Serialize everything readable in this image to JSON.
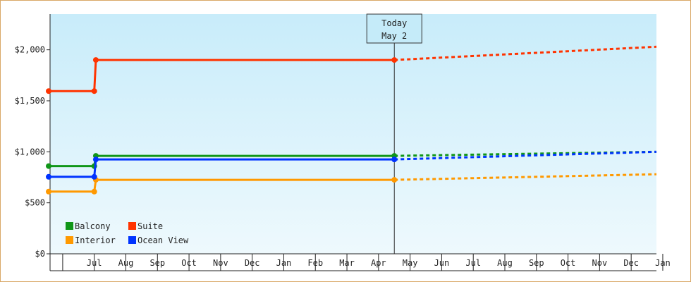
{
  "chart_data": {
    "type": "line",
    "step": true,
    "x_labels": [
      "",
      "Jul",
      "Aug",
      "Sep",
      "Oct",
      "Nov",
      "Dec",
      "Jan",
      "Feb",
      "Mar",
      "Apr",
      "May",
      "Jun",
      "Jul",
      "Aug",
      "Sep",
      "Oct",
      "Nov",
      "Dec",
      "Jan"
    ],
    "ylim": [
      0,
      2350
    ],
    "yticks": [
      0,
      500,
      1000,
      1500,
      2000
    ],
    "ytick_labels": [
      "$0",
      "$500",
      "$1,000",
      "$1,500",
      "$2,000"
    ],
    "today": {
      "line1": "Today",
      "line2": "May 2",
      "x": 10.0
    },
    "legend_placement": "bottom-left",
    "grid": false,
    "colors": {
      "bg_top": "#c8ecfa",
      "bg_bottom": "#eef9fd",
      "frame": "#d9a866"
    },
    "series": [
      {
        "name": "Balcony",
        "color": "#109618",
        "points": [
          [
            -0.4,
            860
          ],
          [
            0.5,
            860
          ],
          [
            0.55,
            960
          ],
          [
            10.0,
            960
          ]
        ],
        "forecast": [
          [
            10.0,
            960
          ],
          [
            19.8,
            1000
          ]
        ]
      },
      {
        "name": "Suite",
        "color": "#ff3300",
        "points": [
          [
            -0.4,
            1595
          ],
          [
            0.5,
            1595
          ],
          [
            0.55,
            1900
          ],
          [
            10.0,
            1900
          ]
        ],
        "forecast": [
          [
            10.0,
            1900
          ],
          [
            19.8,
            2030
          ]
        ]
      },
      {
        "name": "Interior",
        "color": "#ff9900",
        "points": [
          [
            -0.4,
            610
          ],
          [
            0.5,
            610
          ],
          [
            0.55,
            725
          ],
          [
            10.0,
            725
          ]
        ],
        "forecast": [
          [
            10.0,
            725
          ],
          [
            19.8,
            780
          ]
        ]
      },
      {
        "name": "Ocean View",
        "color": "#0033ff",
        "points": [
          [
            -0.4,
            755
          ],
          [
            0.5,
            755
          ],
          [
            0.55,
            925
          ],
          [
            10.0,
            925
          ]
        ],
        "forecast": [
          [
            10.0,
            925
          ],
          [
            19.8,
            1000
          ]
        ]
      }
    ]
  }
}
